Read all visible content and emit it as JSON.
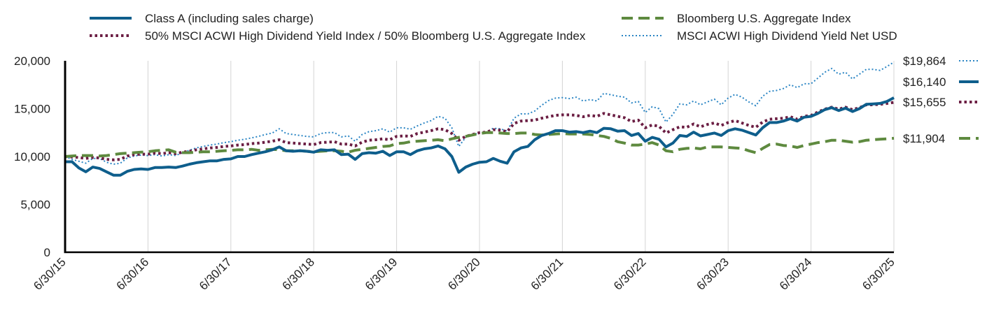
{
  "chart_data": {
    "type": "line",
    "title": "",
    "xlabel": "",
    "ylabel": "",
    "x_ticks": [
      "6/30/15",
      "6/30/16",
      "6/30/17",
      "6/30/18",
      "6/30/19",
      "6/30/20",
      "6/30/21",
      "6/30/22",
      "6/30/23",
      "6/30/24",
      "6/30/25"
    ],
    "x_range": [
      0,
      120
    ],
    "ylim": [
      0,
      20000
    ],
    "y_ticks": [
      0,
      5000,
      10000,
      15000,
      20000
    ],
    "y_tick_labels": [
      "0",
      "5,000",
      "10,000",
      "15,000",
      "20,000"
    ],
    "grid": "vertical",
    "series": [
      {
        "name": "Class A (including sales charge)",
        "color": "#0e5e8c",
        "style": "solid",
        "end_label": "$16,140",
        "values": [
          9450,
          9450,
          8800,
          8400,
          8900,
          8750,
          8400,
          8050,
          8050,
          8450,
          8650,
          8700,
          8650,
          8850,
          8850,
          8900,
          8850,
          9000,
          9200,
          9350,
          9450,
          9550,
          9550,
          9700,
          9750,
          10000,
          10000,
          10200,
          10350,
          10500,
          10700,
          11000,
          10600,
          10550,
          10600,
          10550,
          10450,
          10700,
          10650,
          10700,
          10200,
          10250,
          9700,
          10300,
          10400,
          10350,
          10550,
          10100,
          10500,
          10500,
          10200,
          10600,
          10800,
          10900,
          11100,
          10800,
          10000,
          8350,
          8900,
          9200,
          9400,
          9450,
          9800,
          9500,
          9300,
          10500,
          10900,
          11050,
          11750,
          12200,
          12400,
          12700,
          12700,
          12550,
          12600,
          12500,
          12650,
          12500,
          12950,
          12900,
          12650,
          12700,
          12200,
          12400,
          11600,
          12000,
          11800,
          11000,
          11400,
          12200,
          12100,
          12550,
          12150,
          12300,
          12450,
          12200,
          12700,
          12900,
          12750,
          12500,
          12250,
          13000,
          13550,
          13550,
          13700,
          13950,
          13700,
          14100,
          14200,
          14500,
          14900,
          15100,
          14800,
          15050,
          14700,
          15000,
          15450,
          15500,
          15550,
          15750,
          16140
        ]
      },
      {
        "name": "Bloomberg U.S. Aggregate Index",
        "color": "#5e8a3f",
        "style": "dashed",
        "end_label": "$11,904",
        "values": [
          10000,
          10050,
          10100,
          10100,
          10100,
          10050,
          10100,
          10200,
          10300,
          10350,
          10400,
          10450,
          10500,
          10600,
          10650,
          10700,
          10450,
          10400,
          10400,
          10450,
          10500,
          10500,
          10550,
          10600,
          10650,
          10700,
          10700,
          10750,
          10650,
          10700,
          10750,
          10700,
          10600,
          10600,
          10600,
          10550,
          10500,
          10550,
          10600,
          10600,
          10550,
          10450,
          10650,
          10750,
          10850,
          10950,
          11050,
          11100,
          11350,
          11400,
          11550,
          11600,
          11650,
          11700,
          11750,
          11650,
          11850,
          12000,
          12100,
          12250,
          12400,
          12500,
          12500,
          12450,
          12400,
          12400,
          12450,
          12450,
          12300,
          12250,
          12300,
          12350,
          12400,
          12350,
          12350,
          12350,
          12300,
          12200,
          12100,
          11900,
          11550,
          11400,
          11200,
          11200,
          11300,
          11450,
          11200,
          10600,
          10500,
          10750,
          10850,
          10900,
          10800,
          11000,
          11000,
          11000,
          10950,
          10900,
          10850,
          10600,
          10400,
          10850,
          11250,
          11300,
          11150,
          11100,
          10950,
          11150,
          11300,
          11450,
          11550,
          11700,
          11700,
          11600,
          11500,
          11550,
          11700,
          11750,
          11800,
          11850,
          11904
        ]
      },
      {
        "name": "50% MSCI ACWI High Dividend Yield Index / 50% Bloomberg U.S. Aggregate Index",
        "color": "#6b1e43",
        "style": "dotted-bold",
        "end_label": "$15,655",
        "values": [
          10000,
          9950,
          9900,
          9800,
          9900,
          9850,
          9700,
          9650,
          9700,
          10050,
          10200,
          10250,
          10250,
          10350,
          10300,
          10400,
          10300,
          10450,
          10550,
          10700,
          10800,
          10900,
          10950,
          11050,
          11100,
          11200,
          11250,
          11350,
          11400,
          11500,
          11600,
          11750,
          11450,
          11400,
          11350,
          11300,
          11250,
          11450,
          11500,
          11550,
          11300,
          11300,
          11100,
          11500,
          11700,
          11750,
          11850,
          11750,
          12100,
          12150,
          12100,
          12400,
          12550,
          12700,
          12900,
          12800,
          12400,
          11700,
          12100,
          12300,
          12500,
          12550,
          12800,
          12750,
          12600,
          13450,
          13700,
          13750,
          13800,
          14000,
          14150,
          14300,
          14350,
          14350,
          14300,
          14150,
          14300,
          14200,
          14500,
          14350,
          14200,
          14050,
          13650,
          13800,
          13000,
          13300,
          13150,
          12450,
          12800,
          13100,
          13050,
          13400,
          13100,
          13350,
          13500,
          13250,
          13550,
          13750,
          13500,
          13250,
          13050,
          13600,
          13900,
          13950,
          14000,
          14150,
          13900,
          14200,
          14300,
          14650,
          14950,
          15150,
          14950,
          15150,
          14900,
          15100,
          15400,
          15400,
          15450,
          15550,
          15655
        ]
      },
      {
        "name": "MSCI ACWI High Dividend Yield Net USD",
        "color": "#2a85c4",
        "style": "dotted-fine",
        "end_label": "$19,864",
        "values": [
          10000,
          9700,
          9500,
          9300,
          9800,
          9800,
          9400,
          9200,
          9300,
          9850,
          10050,
          10150,
          10100,
          10200,
          10050,
          10200,
          10100,
          10400,
          10650,
          10900,
          11050,
          11200,
          11300,
          11450,
          11550,
          11700,
          11800,
          11950,
          12100,
          12300,
          12450,
          12900,
          12400,
          12300,
          12200,
          12100,
          12050,
          12400,
          12500,
          12500,
          12050,
          12150,
          11600,
          12300,
          12600,
          12700,
          12900,
          12550,
          13000,
          13000,
          12850,
          13200,
          13500,
          13750,
          14200,
          14000,
          13000,
          11050,
          12000,
          12250,
          12500,
          12550,
          12950,
          12900,
          12650,
          14000,
          14450,
          14450,
          14750,
          15350,
          15850,
          16100,
          16150,
          16050,
          16200,
          15800,
          15950,
          15800,
          16600,
          16450,
          16300,
          16200,
          15600,
          15750,
          14600,
          15200,
          15000,
          13600,
          14400,
          15500,
          15400,
          15800,
          15400,
          15700,
          16000,
          15400,
          16100,
          16500,
          16200,
          15700,
          15300,
          16300,
          16800,
          16900,
          17100,
          17500,
          17200,
          17600,
          17600,
          18200,
          18800,
          19200,
          18600,
          18800,
          18100,
          18600,
          19100,
          19100,
          19000,
          19400,
          19864
        ]
      }
    ],
    "legend_position": "top"
  }
}
